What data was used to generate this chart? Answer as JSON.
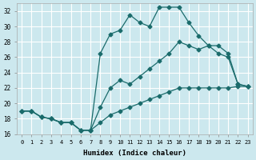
{
  "title": "",
  "xlabel": "Humidex (Indice chaleur)",
  "ylabel": "",
  "background_color": "#cce8ee",
  "grid_color": "#ffffff",
  "line_color": "#1a6b6b",
  "xlim": [
    -0.5,
    23.5
  ],
  "ylim": [
    16,
    33
  ],
  "xticks": [
    0,
    1,
    2,
    3,
    4,
    5,
    6,
    7,
    8,
    9,
    10,
    11,
    12,
    13,
    14,
    15,
    16,
    17,
    18,
    19,
    20,
    21,
    22,
    23
  ],
  "yticks": [
    16,
    18,
    20,
    22,
    24,
    26,
    28,
    30,
    32
  ],
  "line1_x": [
    0,
    1,
    2,
    3,
    4,
    5,
    6,
    7,
    8,
    9,
    10,
    11,
    12,
    13,
    14,
    15,
    16,
    17,
    18,
    19,
    20,
    21,
    22,
    23
  ],
  "line1_y": [
    19.0,
    19.0,
    18.2,
    18.0,
    17.5,
    17.5,
    16.5,
    16.5,
    17.5,
    18.5,
    19.0,
    19.5,
    20.0,
    20.5,
    21.0,
    21.5,
    22.0,
    22.0,
    22.0,
    22.0,
    22.0,
    22.0,
    22.2,
    22.2
  ],
  "line2_x": [
    0,
    1,
    2,
    3,
    4,
    5,
    6,
    7,
    8,
    9,
    10,
    11,
    12,
    13,
    14,
    15,
    16,
    17,
    18,
    19,
    20,
    21,
    22,
    23
  ],
  "line2_y": [
    19.0,
    19.0,
    18.2,
    18.0,
    17.5,
    17.5,
    16.5,
    16.5,
    19.5,
    22.0,
    23.0,
    22.5,
    23.5,
    24.5,
    25.5,
    26.5,
    28.0,
    27.5,
    27.0,
    27.5,
    27.5,
    26.5,
    22.5,
    22.2
  ],
  "line3_x": [
    0,
    1,
    2,
    3,
    4,
    5,
    6,
    7,
    8,
    9,
    10,
    11,
    12,
    13,
    14,
    15,
    16,
    17,
    18,
    19,
    20,
    21,
    22,
    23
  ],
  "line3_y": [
    19.0,
    19.0,
    18.2,
    18.0,
    17.5,
    17.5,
    16.5,
    16.5,
    26.5,
    29.0,
    29.5,
    31.5,
    30.5,
    30.0,
    32.5,
    32.5,
    32.5,
    30.5,
    28.8,
    27.5,
    26.5,
    26.0,
    22.5,
    22.2
  ]
}
